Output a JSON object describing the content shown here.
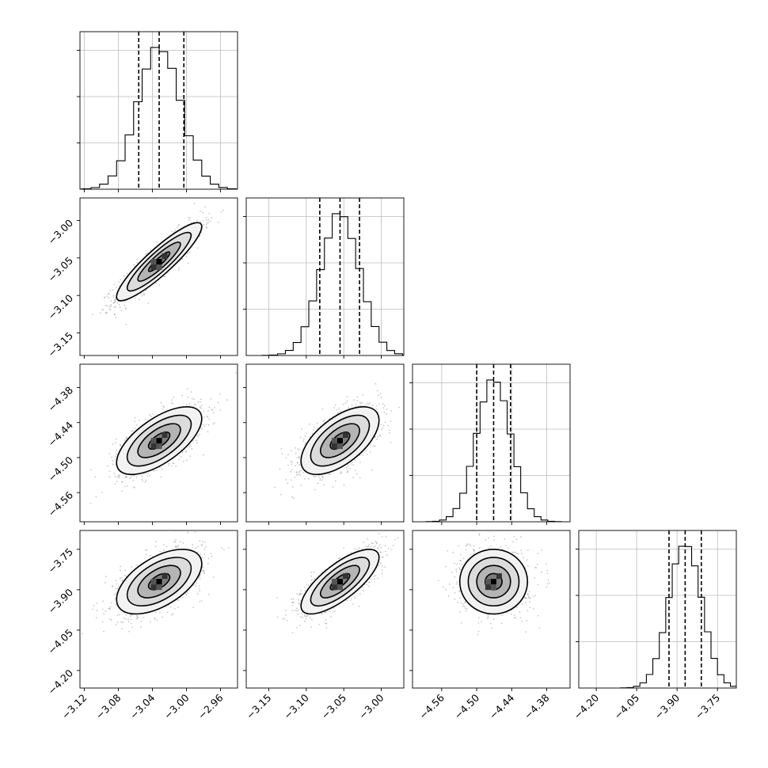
{
  "chart_data": {
    "type": "corner",
    "grid": true,
    "quantiles_marked": true,
    "parameters": [
      {
        "range": [
          -3.125,
          -2.94
        ],
        "ticks": [
          -3.12,
          -3.08,
          -3.04,
          -3.0,
          -2.96
        ],
        "tick_labels": [
          "−3.12",
          "−3.08",
          "−3.04",
          "−3.00",
          "−2.96"
        ],
        "median": -3.032,
        "q16": -3.056,
        "q84": -3.003,
        "sigma": 0.025
      },
      {
        "range": [
          -3.18,
          -2.97
        ],
        "ticks": [
          -3.15,
          -3.1,
          -3.05,
          -3.0
        ],
        "tick_labels": [
          "−3.15",
          "−3.10",
          "−3.05",
          "−3.00"
        ],
        "median": -3.055,
        "q16": -3.082,
        "q84": -3.029,
        "sigma": 0.026
      },
      {
        "range": [
          -4.61,
          -4.34
        ],
        "ticks": [
          -4.56,
          -4.5,
          -4.44,
          -4.38
        ],
        "tick_labels": [
          "−4.56",
          "−4.50",
          "−4.44",
          "−4.38"
        ],
        "median": -4.471,
        "q16": -4.5,
        "q84": -4.442,
        "sigma": 0.029
      },
      {
        "range": [
          -4.265,
          -3.68
        ],
        "ticks": [
          -4.2,
          -4.05,
          -3.9,
          -3.75
        ],
        "tick_labels": [
          "−4.20",
          "−4.05",
          "−3.90",
          "−3.75"
        ],
        "median": -3.87,
        "q16": -3.93,
        "q84": -3.81,
        "sigma": 0.06
      }
    ],
    "correlations": {
      "1-0": 0.9,
      "2-0": 0.65,
      "2-1": 0.6,
      "3-0": 0.55,
      "3-1": 0.75,
      "3-2": 0.0
    },
    "contour_levels_sigma": [
      0.5,
      1.0,
      1.5,
      2.0
    ]
  }
}
